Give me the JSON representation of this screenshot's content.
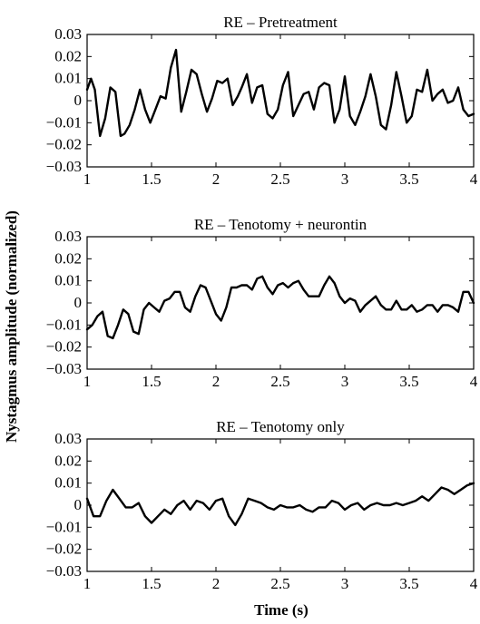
{
  "figure": {
    "ylabel": "Nystagmus amplitude (normalized)",
    "xlabel": "Time (s)"
  },
  "chart_data": [
    {
      "type": "line",
      "title": "RE – Pretreatment",
      "xlim": [
        1,
        4
      ],
      "ylim": [
        -0.03,
        0.03
      ],
      "xticks": [
        "1",
        "1.5",
        "2",
        "2.5",
        "3",
        "3.5",
        "4"
      ],
      "yticks": [
        "0.03",
        "0.02",
        "0.01",
        "0",
        "-0.01",
        "-0.02",
        "-0.03"
      ],
      "grid": false,
      "series": [
        {
          "x": [
            1.0,
            1.03,
            1.06,
            1.1,
            1.14,
            1.18,
            1.22,
            1.26,
            1.29,
            1.33,
            1.37,
            1.41,
            1.45,
            1.49,
            1.53,
            1.57,
            1.61,
            1.65,
            1.69,
            1.73,
            1.77,
            1.81,
            1.85,
            1.89,
            1.93,
            1.97,
            2.01,
            2.05,
            2.09,
            2.13,
            2.17,
            2.2,
            2.24,
            2.28,
            2.32,
            2.36,
            2.4,
            2.44,
            2.48,
            2.52,
            2.56,
            2.6,
            2.64,
            2.68,
            2.72,
            2.76,
            2.8,
            2.84,
            2.88,
            2.92,
            2.96,
            3.0,
            3.04,
            3.08,
            3.12,
            3.16,
            3.2,
            3.24,
            3.28,
            3.32,
            3.36,
            3.4,
            3.44,
            3.48,
            3.52,
            3.56,
            3.6,
            3.64,
            3.68,
            3.72,
            3.76,
            3.8,
            3.84,
            3.88,
            3.92,
            3.96,
            4.0
          ],
          "y": [
            0.005,
            0.01,
            0.005,
            -0.016,
            -0.008,
            0.006,
            0.004,
            -0.016,
            -0.015,
            -0.011,
            -0.004,
            0.005,
            -0.004,
            -0.01,
            -0.004,
            0.002,
            0.001,
            0.015,
            0.023,
            -0.005,
            0.004,
            0.014,
            0.012,
            0.003,
            -0.005,
            0.001,
            0.009,
            0.008,
            0.01,
            -0.002,
            0.002,
            0.006,
            0.012,
            -0.001,
            0.006,
            0.007,
            -0.006,
            -0.008,
            -0.004,
            0.007,
            0.013,
            -0.007,
            -0.002,
            0.003,
            0.004,
            -0.004,
            0.006,
            0.008,
            0.007,
            -0.01,
            -0.004,
            0.011,
            -0.007,
            -0.011,
            -0.005,
            0.002,
            0.012,
            0.002,
            -0.011,
            -0.013,
            -0.002,
            0.013,
            0.002,
            -0.01,
            -0.007,
            0.005,
            0.004,
            0.014,
            0.0,
            0.003,
            0.005,
            -0.001,
            0.0,
            0.006,
            -0.004,
            -0.007,
            -0.006
          ]
        }
      ]
    },
    {
      "type": "line",
      "title": "RE – Tenotomy + neurontin",
      "xlim": [
        1,
        4
      ],
      "ylim": [
        -0.03,
        0.03
      ],
      "xticks": [
        "1",
        "1.5",
        "2",
        "2.5",
        "3",
        "3.5",
        "4"
      ],
      "yticks": [
        "0.03",
        "0.02",
        "0.01",
        "0",
        "-0.01",
        "-0.02",
        "-0.03"
      ],
      "grid": false,
      "series": [
        {
          "x": [
            1.0,
            1.04,
            1.08,
            1.12,
            1.16,
            1.2,
            1.24,
            1.28,
            1.32,
            1.36,
            1.4,
            1.44,
            1.48,
            1.52,
            1.56,
            1.6,
            1.64,
            1.68,
            1.72,
            1.76,
            1.8,
            1.84,
            1.88,
            1.92,
            1.96,
            2.0,
            2.04,
            2.08,
            2.12,
            2.16,
            2.2,
            2.24,
            2.28,
            2.32,
            2.36,
            2.4,
            2.44,
            2.48,
            2.52,
            2.56,
            2.6,
            2.64,
            2.68,
            2.72,
            2.76,
            2.8,
            2.84,
            2.88,
            2.92,
            2.96,
            3.0,
            3.04,
            3.08,
            3.12,
            3.16,
            3.2,
            3.24,
            3.28,
            3.32,
            3.36,
            3.4,
            3.44,
            3.48,
            3.52,
            3.56,
            3.6,
            3.64,
            3.68,
            3.72,
            3.76,
            3.8,
            3.84,
            3.88,
            3.92,
            3.96,
            4.0
          ],
          "y": [
            -0.012,
            -0.01,
            -0.006,
            -0.004,
            -0.015,
            -0.016,
            -0.01,
            -0.003,
            -0.005,
            -0.013,
            -0.014,
            -0.003,
            0.0,
            -0.002,
            -0.004,
            0.001,
            0.002,
            0.005,
            0.005,
            -0.002,
            -0.004,
            0.003,
            0.008,
            0.007,
            0.001,
            -0.005,
            -0.008,
            -0.002,
            0.007,
            0.007,
            0.008,
            0.008,
            0.006,
            0.011,
            0.012,
            0.007,
            0.004,
            0.008,
            0.009,
            0.007,
            0.009,
            0.01,
            0.006,
            0.003,
            0.003,
            0.003,
            0.008,
            0.012,
            0.009,
            0.003,
            0.0,
            0.002,
            0.001,
            -0.004,
            -0.001,
            0.001,
            0.003,
            -0.001,
            -0.003,
            -0.003,
            0.001,
            -0.003,
            -0.003,
            -0.001,
            -0.004,
            -0.003,
            -0.001,
            -0.001,
            -0.004,
            -0.001,
            -0.001,
            -0.002,
            -0.004,
            0.005,
            0.005,
            0.0
          ]
        }
      ]
    },
    {
      "type": "line",
      "title": "RE – Tenotomy only",
      "xlim": [
        1,
        4
      ],
      "ylim": [
        -0.03,
        0.03
      ],
      "xticks": [
        "1",
        "1.5",
        "2",
        "2.5",
        "3",
        "3.5",
        "4"
      ],
      "yticks": [
        "0.03",
        "0.02",
        "0.01",
        "0",
        "-0.01",
        "-0.02",
        "-0.03"
      ],
      "grid": false,
      "series": [
        {
          "x": [
            1.0,
            1.05,
            1.1,
            1.15,
            1.2,
            1.25,
            1.3,
            1.35,
            1.4,
            1.45,
            1.5,
            1.55,
            1.6,
            1.65,
            1.7,
            1.75,
            1.8,
            1.85,
            1.9,
            1.95,
            2.0,
            2.05,
            2.1,
            2.15,
            2.2,
            2.25,
            2.3,
            2.35,
            2.4,
            2.45,
            2.5,
            2.55,
            2.6,
            2.65,
            2.7,
            2.75,
            2.8,
            2.85,
            2.9,
            2.95,
            3.0,
            3.05,
            3.1,
            3.15,
            3.2,
            3.25,
            3.3,
            3.35,
            3.4,
            3.45,
            3.5,
            3.55,
            3.6,
            3.65,
            3.7,
            3.75,
            3.8,
            3.85,
            3.9,
            3.95,
            4.0
          ],
          "y": [
            0.003,
            -0.005,
            -0.005,
            0.002,
            0.007,
            0.003,
            -0.001,
            -0.001,
            0.001,
            -0.005,
            -0.008,
            -0.005,
            -0.002,
            -0.004,
            0.0,
            0.002,
            -0.002,
            0.002,
            0.001,
            -0.002,
            0.002,
            0.003,
            -0.005,
            -0.009,
            -0.004,
            0.003,
            0.002,
            0.001,
            -0.001,
            -0.002,
            0.0,
            -0.001,
            -0.001,
            0.0,
            -0.002,
            -0.003,
            -0.001,
            -0.001,
            0.002,
            0.001,
            -0.002,
            0.0,
            0.001,
            -0.002,
            0.0,
            0.001,
            0.0,
            0.0,
            0.001,
            0.0,
            0.001,
            0.002,
            0.004,
            0.002,
            0.005,
            0.008,
            0.007,
            0.005,
            0.007,
            0.009,
            0.01
          ]
        }
      ]
    }
  ]
}
